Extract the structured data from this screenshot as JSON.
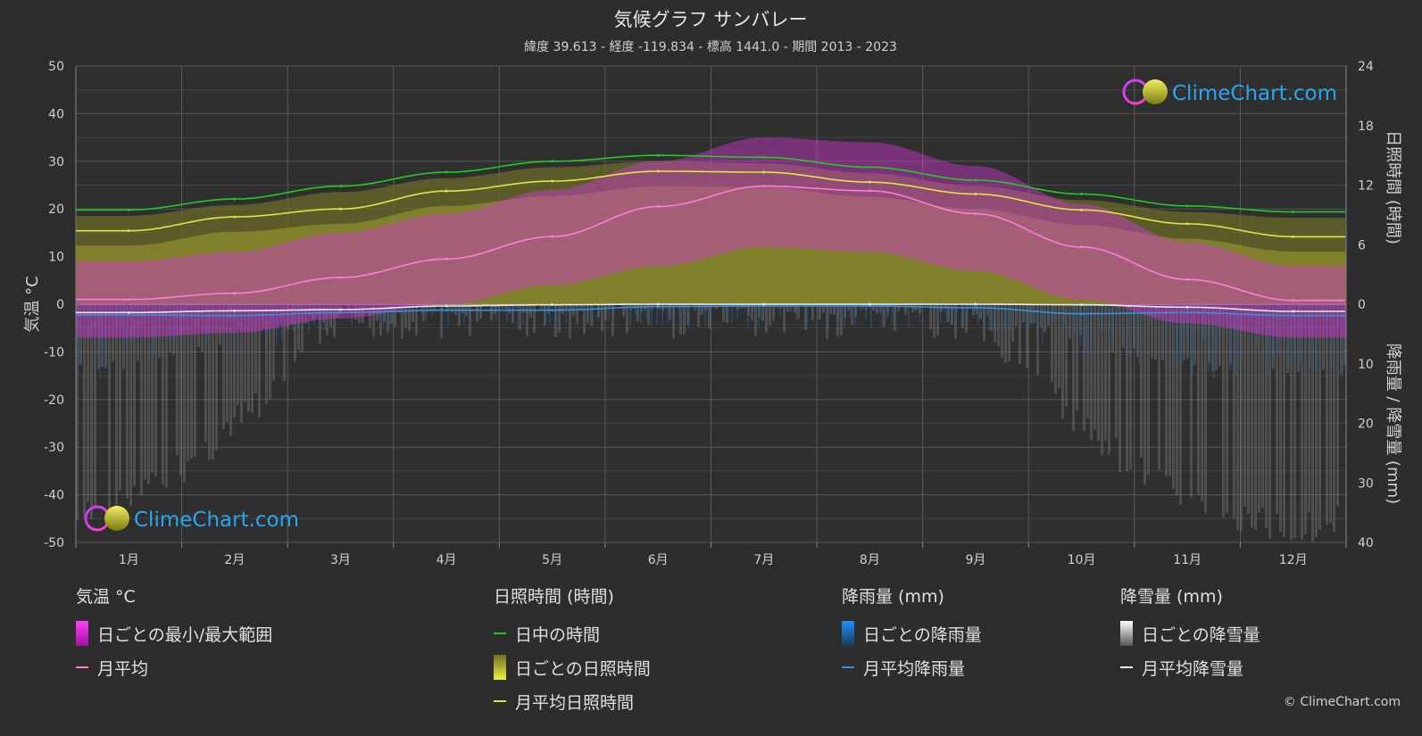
{
  "header": {
    "title": "気候グラフ サンバレー",
    "subtitle": "緯度 39.613 - 経度 -119.834 - 標高 1441.0 - 期間 2013 - 2023"
  },
  "axes": {
    "left_title": "気温 °C",
    "right_top_title": "日照時間 (時間)",
    "right_bottom_title": "降雨量 / 降雪量 (mm)"
  },
  "chart_data": {
    "type": "line",
    "title": "気候グラフ サンバレー",
    "categories": [
      "1月",
      "2月",
      "3月",
      "4月",
      "5月",
      "6月",
      "7月",
      "8月",
      "9月",
      "10月",
      "11月",
      "12月"
    ],
    "y_left": {
      "label": "気温 °C",
      "ticks": [
        50,
        40,
        30,
        20,
        10,
        0,
        -10,
        -20,
        -30,
        -40,
        -50
      ],
      "lim": [
        -50,
        50
      ]
    },
    "y_right_sun": {
      "label": "日照時間 (時間)",
      "ticks": [
        24,
        18,
        12,
        6,
        0
      ],
      "lim": [
        0,
        24
      ]
    },
    "y_right_precip": {
      "label": "降雨量 / 降雪量 (mm)",
      "ticks": [
        0,
        10,
        20,
        30,
        40
      ],
      "lim": [
        0,
        40
      ]
    },
    "series": [
      {
        "name": "日中の時間",
        "unit": "hours",
        "color": "#22cc22",
        "values": [
          9.5,
          10.6,
          11.9,
          13.3,
          14.4,
          15.0,
          14.8,
          13.8,
          12.5,
          11.1,
          9.9,
          9.3
        ]
      },
      {
        "name": "月平均日照時間",
        "unit": "hours",
        "color": "#e3e34a",
        "values": [
          7.4,
          8.8,
          9.6,
          11.4,
          12.4,
          13.4,
          13.3,
          12.3,
          11.1,
          9.5,
          8.1,
          6.8
        ]
      },
      {
        "name": "月平均",
        "unit": "°C",
        "color": "#ff7bdc",
        "values": [
          1.0,
          2.3,
          5.6,
          9.5,
          14.2,
          20.5,
          24.8,
          23.8,
          19.0,
          12.0,
          5.2,
          0.8
        ]
      },
      {
        "name": "月平均降雨量",
        "unit": "mm",
        "color": "#3a8fdc",
        "values": [
          1.8,
          1.9,
          1.4,
          1.0,
          1.0,
          0.4,
          0.3,
          0.3,
          0.6,
          1.6,
          1.4,
          1.9
        ]
      },
      {
        "name": "月平均降雪量",
        "unit": "mm",
        "color": "#e8e8e8",
        "values": [
          1.4,
          1.1,
          0.9,
          0.3,
          0.1,
          0.0,
          0.0,
          0.0,
          0.0,
          0.1,
          0.5,
          1.2
        ]
      }
    ],
    "ranges": {
      "temp_min": [
        -7,
        -6,
        -3,
        0,
        4,
        8,
        12,
        11,
        7,
        1,
        -4,
        -7
      ],
      "temp_max": [
        9,
        11,
        15,
        19,
        24,
        30,
        35,
        34,
        29,
        21,
        13,
        8
      ]
    },
    "grid": true
  },
  "legend": {
    "temp": {
      "title": "気温 °C",
      "items": [
        "日ごとの最小/最大範囲",
        "月平均"
      ]
    },
    "sun": {
      "title": "日照時間 (時間)",
      "items": [
        "日中の時間",
        "日ごとの日照時間",
        "月平均日照時間"
      ]
    },
    "rain": {
      "title": "降雨量 (mm)",
      "items": [
        "日ごとの降雨量",
        "月平均降雨量"
      ]
    },
    "snow": {
      "title": "降雪量 (mm)",
      "items": [
        "日ごとの降雪量",
        "月平均降雪量"
      ]
    }
  },
  "logo": {
    "text": "ClimeChart.com"
  },
  "copyright": "© ClimeChart.com",
  "colors": {
    "background": "#2d2d2d",
    "temp_range": "#e21ae2",
    "sunshine": "#c8c832",
    "rain": "#1f7fd8",
    "snow": "#cfcfcf",
    "logo_text": "#2aa6f0"
  }
}
